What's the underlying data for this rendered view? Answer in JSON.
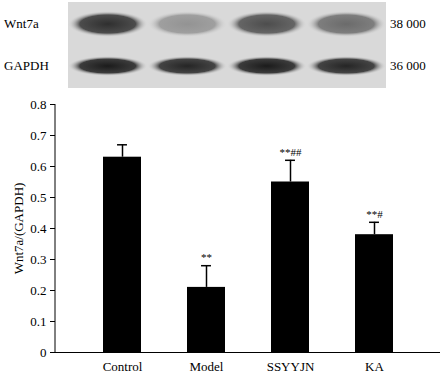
{
  "chart_data": {
    "type": "bar",
    "categories": [
      "Control",
      "Model",
      "SSYYJN",
      "KA"
    ],
    "values": [
      0.63,
      0.21,
      0.55,
      0.38
    ],
    "errors": [
      0.04,
      0.07,
      0.07,
      0.04
    ],
    "annotations": [
      {
        "category": "Model",
        "text": "**"
      },
      {
        "category": "SSYYJN",
        "text": "**##"
      },
      {
        "category": "KA",
        "text": "**#"
      }
    ],
    "color": "#000000",
    "ylabel": "Wnt7a/(GAPDH)",
    "ylim": [
      0,
      0.8
    ],
    "yticks": [
      0,
      0.1,
      0.2,
      0.3,
      0.4,
      0.5,
      0.6,
      0.7,
      0.8
    ],
    "blot": [
      {
        "label": "Wnt7a",
        "mw": "38 000"
      },
      {
        "label": "GAPDH",
        "mw": "36 000"
      }
    ]
  }
}
